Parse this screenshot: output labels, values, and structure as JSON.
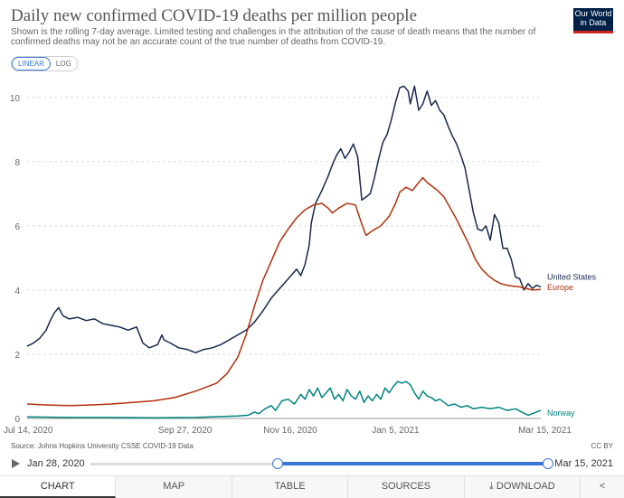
{
  "header": {
    "title": "Daily new confirmed COVID-19 deaths per million people",
    "subtitle": "Shown is the rolling 7-day average. Limited testing and challenges in the attribution of the cause of death means that the number of confirmed deaths may not be an accurate count of the true number of deaths from COVID-19.",
    "logo_line1": "Our World",
    "logo_line2": "in Data"
  },
  "scale": {
    "linear_label": "LINEAR",
    "log_label": "LOG",
    "selected": "LINEAR"
  },
  "colors": {
    "us": "#18284e",
    "europe": "#b2310e",
    "norway": "#00847e",
    "grid": "#dddddd",
    "accent": "#3a76d6"
  },
  "chart_data": {
    "type": "line",
    "title": "Daily new confirmed COVID-19 deaths per million people",
    "x_unit": "days since Jul 14, 2020",
    "xlim": [
      0,
      244
    ],
    "ylim": [
      0,
      10.5
    ],
    "y_ticks": [
      0,
      2,
      4,
      6,
      8,
      10
    ],
    "x_ticks": [
      {
        "x": 0,
        "label": "Jul 14, 2020"
      },
      {
        "x": 75,
        "label": "Sep 27, 2020"
      },
      {
        "x": 125,
        "label": "Nov 16, 2020"
      },
      {
        "x": 175,
        "label": "Jan 5, 2021"
      },
      {
        "x": 244,
        "label": "Mar 15, 2021"
      }
    ],
    "grid": true,
    "series": [
      {
        "name": "United States",
        "color": "#18284e",
        "points": [
          [
            0,
            2.25
          ],
          [
            3,
            2.35
          ],
          [
            6,
            2.5
          ],
          [
            9,
            2.75
          ],
          [
            11,
            3.05
          ],
          [
            13,
            3.3
          ],
          [
            15,
            3.45
          ],
          [
            17,
            3.2
          ],
          [
            20,
            3.1
          ],
          [
            24,
            3.15
          ],
          [
            28,
            3.05
          ],
          [
            32,
            3.1
          ],
          [
            36,
            2.95
          ],
          [
            40,
            2.9
          ],
          [
            44,
            2.85
          ],
          [
            48,
            2.75
          ],
          [
            52,
            2.85
          ],
          [
            55,
            2.35
          ],
          [
            58,
            2.2
          ],
          [
            62,
            2.3
          ],
          [
            64,
            2.6
          ],
          [
            65,
            2.45
          ],
          [
            68,
            2.35
          ],
          [
            72,
            2.2
          ],
          [
            76,
            2.15
          ],
          [
            80,
            2.05
          ],
          [
            84,
            2.15
          ],
          [
            88,
            2.2
          ],
          [
            92,
            2.3
          ],
          [
            96,
            2.45
          ],
          [
            100,
            2.6
          ],
          [
            104,
            2.75
          ],
          [
            108,
            3.0
          ],
          [
            112,
            3.35
          ],
          [
            116,
            3.75
          ],
          [
            120,
            4.05
          ],
          [
            124,
            4.35
          ],
          [
            128,
            4.65
          ],
          [
            130,
            4.45
          ],
          [
            132,
            4.8
          ],
          [
            134,
            5.4
          ],
          [
            135,
            6.1
          ],
          [
            137,
            6.7
          ],
          [
            140,
            7.1
          ],
          [
            143,
            7.55
          ],
          [
            145,
            7.9
          ],
          [
            147,
            8.2
          ],
          [
            149,
            8.4
          ],
          [
            151,
            8.1
          ],
          [
            153,
            8.3
          ],
          [
            155,
            8.55
          ],
          [
            157,
            8.15
          ],
          [
            159,
            6.8
          ],
          [
            161,
            6.9
          ],
          [
            163,
            7.0
          ],
          [
            165,
            7.5
          ],
          [
            167,
            8.1
          ],
          [
            169,
            8.6
          ],
          [
            171,
            8.85
          ],
          [
            173,
            9.3
          ],
          [
            175,
            9.85
          ],
          [
            177,
            10.3
          ],
          [
            179,
            10.35
          ],
          [
            181,
            10.2
          ],
          [
            182,
            9.8
          ],
          [
            184,
            10.35
          ],
          [
            186,
            9.6
          ],
          [
            188,
            9.8
          ],
          [
            190,
            10.2
          ],
          [
            192,
            9.75
          ],
          [
            194,
            9.9
          ],
          [
            196,
            9.6
          ],
          [
            198,
            9.45
          ],
          [
            200,
            9.1
          ],
          [
            202,
            8.8
          ],
          [
            204,
            8.55
          ],
          [
            206,
            8.2
          ],
          [
            208,
            7.8
          ],
          [
            210,
            7.1
          ],
          [
            212,
            6.4
          ],
          [
            214,
            5.9
          ],
          [
            216,
            5.85
          ],
          [
            218,
            6.0
          ],
          [
            220,
            5.55
          ],
          [
            222,
            6.35
          ],
          [
            224,
            6.1
          ],
          [
            226,
            5.3
          ],
          [
            228,
            5.3
          ],
          [
            230,
            4.95
          ],
          [
            232,
            4.4
          ],
          [
            234,
            4.35
          ],
          [
            236,
            4.0
          ],
          [
            238,
            4.2
          ],
          [
            240,
            4.05
          ],
          [
            242,
            4.15
          ],
          [
            244,
            4.1
          ]
        ]
      },
      {
        "name": "Europe",
        "color": "#b2310e",
        "points": [
          [
            0,
            0.45
          ],
          [
            10,
            0.42
          ],
          [
            20,
            0.4
          ],
          [
            30,
            0.42
          ],
          [
            40,
            0.45
          ],
          [
            50,
            0.5
          ],
          [
            60,
            0.55
          ],
          [
            70,
            0.65
          ],
          [
            80,
            0.85
          ],
          [
            90,
            1.1
          ],
          [
            95,
            1.4
          ],
          [
            100,
            1.9
          ],
          [
            104,
            2.6
          ],
          [
            108,
            3.5
          ],
          [
            112,
            4.3
          ],
          [
            116,
            4.9
          ],
          [
            120,
            5.5
          ],
          [
            124,
            5.9
          ],
          [
            128,
            6.25
          ],
          [
            132,
            6.5
          ],
          [
            136,
            6.65
          ],
          [
            140,
            6.7
          ],
          [
            143,
            6.55
          ],
          [
            145,
            6.4
          ],
          [
            148,
            6.55
          ],
          [
            152,
            6.7
          ],
          [
            156,
            6.65
          ],
          [
            159,
            6.05
          ],
          [
            161,
            5.7
          ],
          [
            164,
            5.85
          ],
          [
            168,
            6.0
          ],
          [
            172,
            6.3
          ],
          [
            175,
            6.7
          ],
          [
            177,
            7.05
          ],
          [
            180,
            7.2
          ],
          [
            183,
            7.1
          ],
          [
            186,
            7.35
          ],
          [
            188,
            7.5
          ],
          [
            190,
            7.35
          ],
          [
            192,
            7.25
          ],
          [
            195,
            7.1
          ],
          [
            198,
            6.9
          ],
          [
            201,
            6.55
          ],
          [
            204,
            6.2
          ],
          [
            207,
            5.8
          ],
          [
            210,
            5.4
          ],
          [
            213,
            4.95
          ],
          [
            216,
            4.65
          ],
          [
            219,
            4.45
          ],
          [
            222,
            4.3
          ],
          [
            225,
            4.2
          ],
          [
            228,
            4.15
          ],
          [
            231,
            4.12
          ],
          [
            234,
            4.1
          ],
          [
            237,
            4.05
          ],
          [
            240,
            4.0
          ],
          [
            244,
            4.02
          ]
        ]
      },
      {
        "name": "Norway",
        "color": "#00847e",
        "points": [
          [
            0,
            0.05
          ],
          [
            20,
            0.03
          ],
          [
            40,
            0.03
          ],
          [
            60,
            0.02
          ],
          [
            80,
            0.03
          ],
          [
            100,
            0.08
          ],
          [
            105,
            0.1
          ],
          [
            108,
            0.2
          ],
          [
            110,
            0.15
          ],
          [
            113,
            0.3
          ],
          [
            116,
            0.4
          ],
          [
            118,
            0.25
          ],
          [
            121,
            0.55
          ],
          [
            124,
            0.6
          ],
          [
            127,
            0.45
          ],
          [
            130,
            0.75
          ],
          [
            132,
            0.6
          ],
          [
            134,
            0.9
          ],
          [
            136,
            0.7
          ],
          [
            138,
            0.95
          ],
          [
            140,
            0.65
          ],
          [
            142,
            0.8
          ],
          [
            144,
            0.95
          ],
          [
            146,
            0.6
          ],
          [
            148,
            0.75
          ],
          [
            150,
            0.55
          ],
          [
            152,
            0.9
          ],
          [
            154,
            0.7
          ],
          [
            156,
            0.6
          ],
          [
            158,
            0.85
          ],
          [
            160,
            0.5
          ],
          [
            162,
            0.7
          ],
          [
            164,
            0.55
          ],
          [
            166,
            0.75
          ],
          [
            168,
            0.6
          ],
          [
            170,
            0.95
          ],
          [
            172,
            0.8
          ],
          [
            174,
            1.0
          ],
          [
            176,
            1.15
          ],
          [
            178,
            1.1
          ],
          [
            180,
            1.15
          ],
          [
            182,
            1.05
          ],
          [
            184,
            0.8
          ],
          [
            186,
            0.6
          ],
          [
            188,
            0.85
          ],
          [
            190,
            0.7
          ],
          [
            192,
            0.65
          ],
          [
            194,
            0.55
          ],
          [
            196,
            0.6
          ],
          [
            198,
            0.5
          ],
          [
            200,
            0.4
          ],
          [
            203,
            0.45
          ],
          [
            206,
            0.35
          ],
          [
            209,
            0.4
          ],
          [
            212,
            0.3
          ],
          [
            216,
            0.35
          ],
          [
            220,
            0.3
          ],
          [
            224,
            0.35
          ],
          [
            228,
            0.25
          ],
          [
            232,
            0.3
          ],
          [
            235,
            0.2
          ],
          [
            238,
            0.1
          ],
          [
            240,
            0.15
          ],
          [
            244,
            0.25
          ]
        ]
      }
    ]
  },
  "footer": {
    "source": "Source: Johns Hopkins University CSSE COVID-19 Data",
    "license": "CC BY"
  },
  "timeline": {
    "start": "Jan 28, 2020",
    "end": "Mar 15, 2021",
    "range_start_fraction": 0.41,
    "range_end_fraction": 1.0
  },
  "tabs": [
    "CHART",
    "MAP",
    "TABLE",
    "SOURCES",
    "DOWNLOAD"
  ],
  "active_tab": "CHART"
}
